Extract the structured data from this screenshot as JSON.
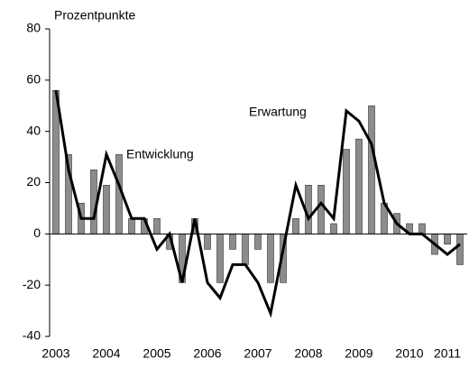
{
  "chart_data": {
    "type": "bar-line",
    "ylabel": "Prozentpunkte",
    "categories": [
      "2003",
      null,
      null,
      null,
      "2004",
      null,
      null,
      null,
      "2005",
      null,
      null,
      null,
      "2006",
      null,
      null,
      null,
      "2007",
      null,
      null,
      null,
      "2008",
      null,
      null,
      null,
      "2009",
      null,
      null,
      null,
      "2010",
      null,
      null,
      "2011",
      null
    ],
    "series": [
      {
        "name": "Entwicklung",
        "type": "bar",
        "color": "#8c8c8c",
        "values": [
          56,
          31,
          12,
          25,
          19,
          31,
          6,
          6,
          6,
          -6,
          -19,
          6,
          -6,
          -19,
          -6,
          -12,
          -6,
          -19,
          -19,
          6,
          19,
          19,
          4,
          33,
          37,
          50,
          12,
          8,
          4,
          4,
          -8,
          -4,
          -12
        ]
      },
      {
        "name": "Erwartung",
        "type": "line",
        "color": "#000000",
        "values": [
          56,
          25,
          6,
          6,
          31,
          19,
          6,
          6,
          -6,
          0,
          -19,
          6,
          -19,
          -25,
          -12,
          -12,
          -19,
          -31,
          -6,
          19,
          6,
          12,
          6,
          48,
          44,
          35,
          12,
          4,
          0,
          0,
          -4,
          -8,
          -4
        ]
      }
    ],
    "ylim": [
      -40,
      80
    ],
    "yticks": [
      -40,
      -20,
      0,
      20,
      40,
      60,
      80
    ]
  }
}
